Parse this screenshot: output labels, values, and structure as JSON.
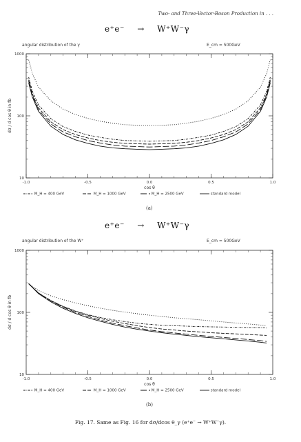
{
  "header": {
    "running_title": "Two- and Three-Vector-Boson Production in . . ."
  },
  "caption": "Fig. 17. Same as Fig. 16 for dσ/dcos θ_γ (e⁺e⁻ → W⁺W⁻γ).",
  "chart_data": [
    {
      "type": "line",
      "process": {
        "left": "e⁺e⁻",
        "arrow": "→",
        "right": "W⁺W⁻γ"
      },
      "title": "angular distribution of the γ",
      "energy_label": "E_cm = 500GeV",
      "xlabel": "cos θ",
      "ylabel": "dσ / d cos θ   in fb",
      "sublabel": "(a)",
      "xlim": [
        -1.0,
        1.0
      ],
      "ylim": [
        10,
        1000
      ],
      "yscale": "log",
      "x_ticks": [
        "-1.0",
        "-0.5",
        "0.0",
        "0.5",
        "1.0"
      ],
      "y_ticks": [
        "10",
        "100",
        "1000"
      ],
      "x": [
        -0.98,
        -0.95,
        -0.9,
        -0.8,
        -0.7,
        -0.6,
        -0.5,
        -0.4,
        -0.3,
        -0.2,
        -0.1,
        0.0,
        0.1,
        0.2,
        0.3,
        0.4,
        0.5,
        0.6,
        0.7,
        0.8,
        0.9,
        0.95,
        0.98
      ],
      "series": [
        {
          "name": "M_H = 400 GeV",
          "dash": "3,1.5,0.8,1.5",
          "values": [
            420,
            250,
            150,
            90,
            67,
            56,
            49,
            45,
            42,
            40,
            39.5,
            39,
            39.5,
            40,
            42,
            45,
            49,
            56,
            67,
            90,
            150,
            250,
            420
          ]
        },
        {
          "name": "M_H = 1000 GeV",
          "dash": "5,2",
          "values": [
            380,
            225,
            135,
            80,
            60,
            50,
            44,
            40,
            37.5,
            36,
            35.5,
            35,
            35.5,
            36,
            37.5,
            40,
            44,
            50,
            60,
            80,
            135,
            225,
            380
          ]
        },
        {
          "name": "M_H = 2500 GeV",
          "dash": "9,3",
          "values": [
            360,
            212,
            126,
            74,
            55,
            46,
            40,
            36.5,
            34,
            32.5,
            32,
            31.5,
            32,
            32.5,
            34,
            36.5,
            40,
            46,
            55,
            74,
            126,
            212,
            360
          ]
        },
        {
          "name": "standard model",
          "dash": "",
          "values": [
            340,
            200,
            118,
            68,
            50,
            41,
            36,
            32.5,
            30.5,
            29.5,
            29,
            28.5,
            29,
            29.5,
            30.5,
            32.5,
            36,
            41,
            50,
            68,
            118,
            200,
            340
          ]
        },
        {
          "name": "",
          "dash": "1,2",
          "values": [
            800,
            480,
            290,
            175,
            128,
            105,
            91,
            82,
            76,
            72,
            70.5,
            70,
            70.5,
            72,
            76,
            82,
            91,
            105,
            128,
            175,
            290,
            480,
            800
          ]
        }
      ]
    },
    {
      "type": "line",
      "process": {
        "left": "e⁺e⁻",
        "arrow": "→",
        "right": "W⁺W⁻γ"
      },
      "title": "angular distribution of the W⁺",
      "energy_label": "E_cm = 500GeV",
      "xlabel": "cos θ",
      "ylabel": "dσ / d cos θ   in fb",
      "sublabel": "(b)",
      "xlim": [
        -1.0,
        1.0
      ],
      "ylim": [
        10,
        1000
      ],
      "yscale": "log",
      "x_ticks": [
        "-1.0",
        "-0.5",
        "0.0",
        "0.5",
        "1.0"
      ],
      "y_ticks": [
        "10",
        "100",
        "1000"
      ],
      "x": [
        -0.98,
        -0.9,
        -0.8,
        -0.7,
        -0.6,
        -0.5,
        -0.4,
        -0.3,
        -0.2,
        -0.1,
        0.0,
        0.1,
        0.2,
        0.3,
        0.4,
        0.5,
        0.6,
        0.7,
        0.8,
        0.9,
        0.95
      ],
      "series": [
        {
          "name": "M_H = 400 GeV",
          "dash": "3,1.5,0.8,1.5",
          "values": [
            290,
            205,
            155,
            125,
            105,
            92,
            83,
            76,
            71,
            67,
            64,
            62,
            61,
            60,
            59,
            58.5,
            58,
            57.5,
            57,
            56.5,
            56
          ]
        },
        {
          "name": "M_H = 1000 GeV",
          "dash": "5,2",
          "values": [
            290,
            205,
            155,
            124,
            104,
            90,
            80,
            72,
            66,
            61,
            57,
            54,
            52,
            50,
            48.5,
            47,
            46,
            45,
            44,
            43,
            42.5
          ]
        },
        {
          "name": "M_H = 2500 GeV",
          "dash": "9,3",
          "values": [
            290,
            205,
            153,
            121,
            100,
            86,
            75,
            67,
            61,
            56,
            52,
            49,
            46.5,
            44.5,
            42.5,
            41,
            39.5,
            38,
            36.5,
            35,
            34
          ]
        },
        {
          "name": "standard model",
          "dash": "",
          "values": [
            290,
            200,
            148,
            116,
            96,
            82,
            72,
            64,
            58,
            53.5,
            50,
            47,
            44.5,
            42.5,
            40.5,
            39,
            37.5,
            36,
            34.5,
            33,
            32
          ]
        },
        {
          "name": "",
          "dash": "1,2",
          "values": [
            290,
            225,
            185,
            160,
            142,
            128,
            117,
            108,
            101,
            95,
            90,
            86,
            82,
            79,
            76,
            73,
            70,
            67.5,
            65,
            62.5,
            61
          ]
        }
      ]
    }
  ]
}
